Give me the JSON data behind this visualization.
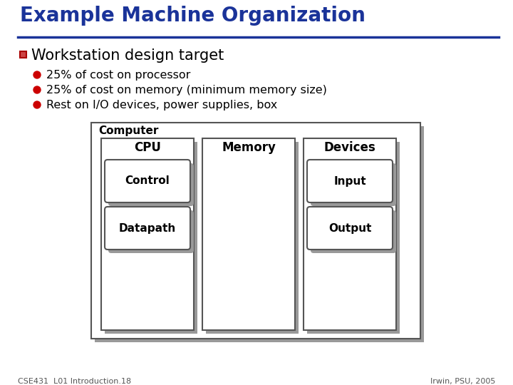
{
  "title": "Example Machine Organization",
  "title_color": "#1a3399",
  "title_underline_color": "#1a3399",
  "slide_bg": "#ffffff",
  "bullet_header": "Workstation design target",
  "bullets": [
    "25% of cost on processor",
    "25% of cost on memory (minimum memory size)",
    "Rest on I/O devices, power supplies, box"
  ],
  "bullet_color": "#cc0000",
  "footer_left": "CSE431  L01 Introduction.18",
  "footer_right": "Irwin, PSU, 2005",
  "diagram": {
    "outer_label": "Computer",
    "boxes": [
      {
        "label": "CPU",
        "sub": [
          "Control",
          "Datapath"
        ]
      },
      {
        "label": "Memory",
        "sub": []
      },
      {
        "label": "Devices",
        "sub": [
          "Input",
          "Output"
        ]
      }
    ]
  }
}
